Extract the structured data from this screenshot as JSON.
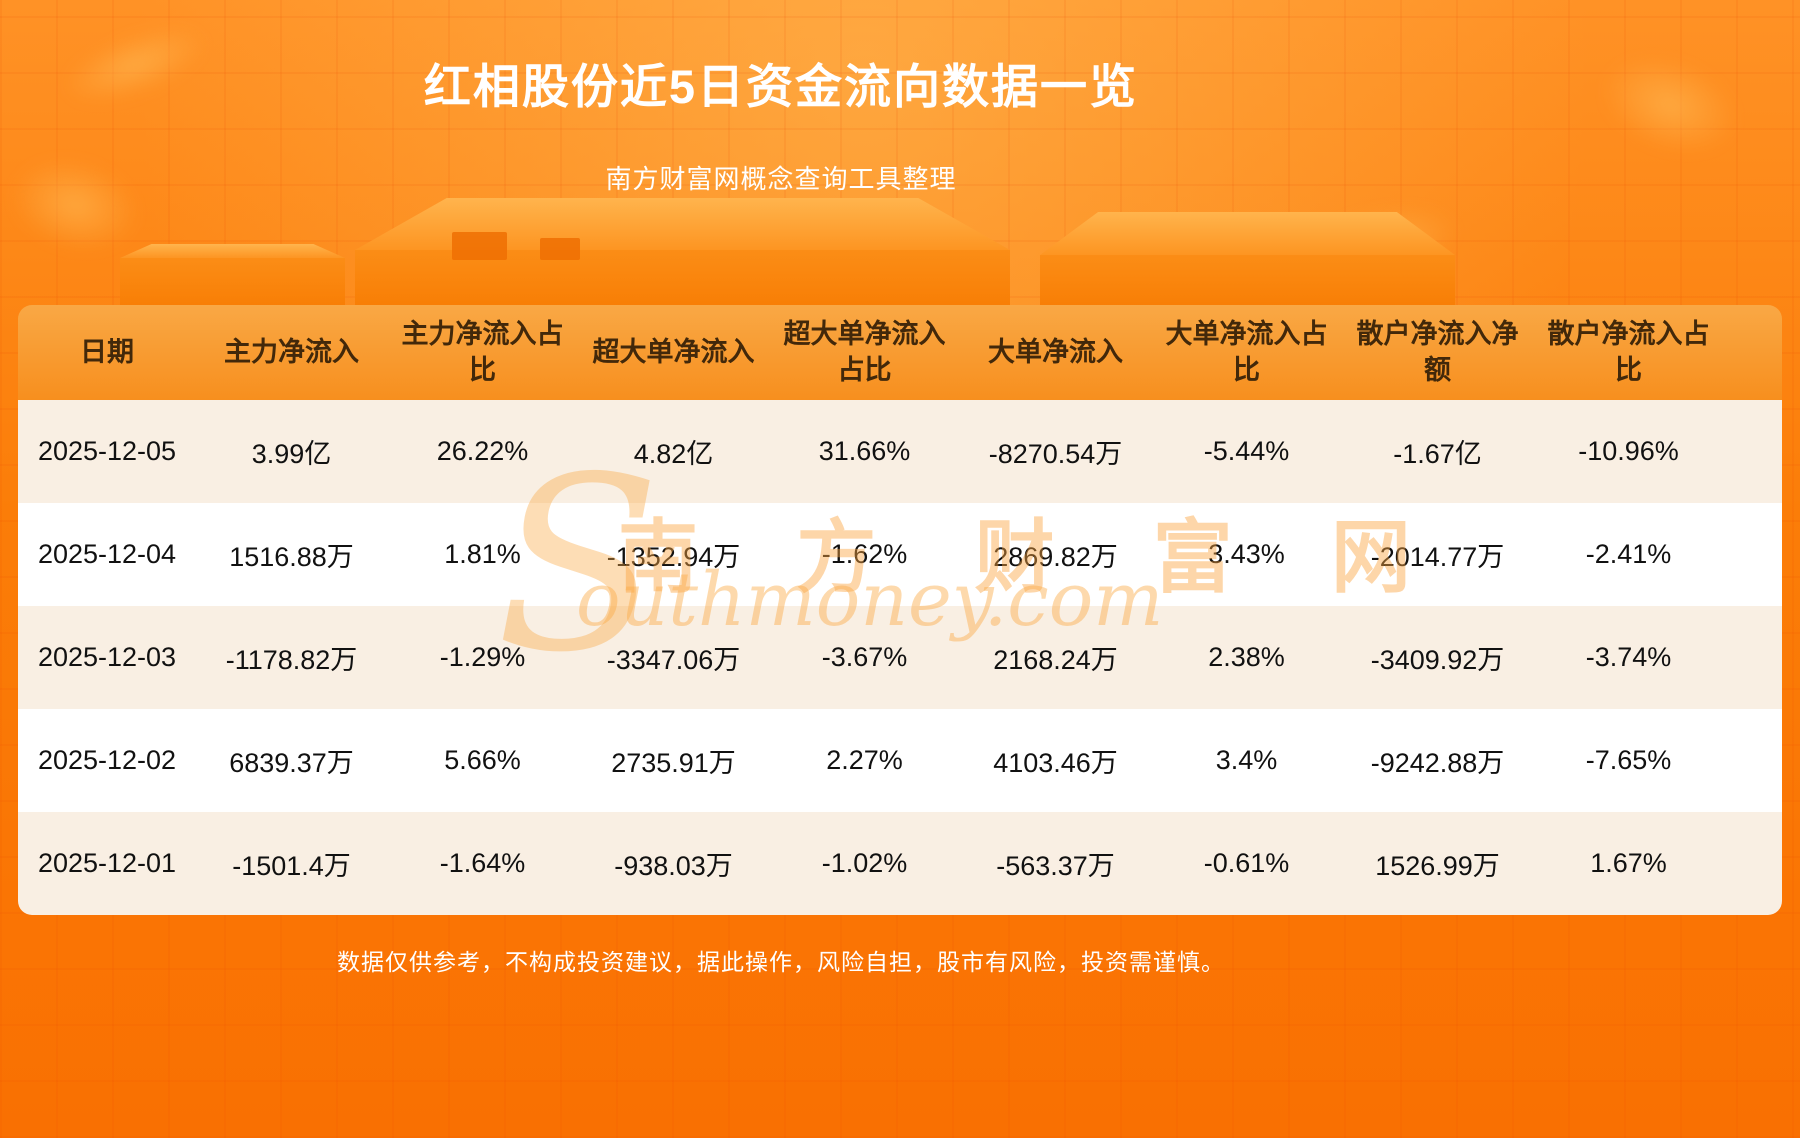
{
  "page": {
    "title": "红相股份近5日资金流向数据一览",
    "subtitle": "南方财富网概念查询工具整理",
    "disclaimer": "数据仅供参考，不构成投资建议，据此操作，风险自担，股市有风险，投资需谨慎。",
    "watermark_s": "S",
    "watermark_cn": "南 方 财 富 网",
    "watermark_en": "outhmoney.com"
  },
  "chart_data": {
    "type": "table",
    "columns": [
      "日期",
      "主力净流入",
      "主力净流入占比",
      "超大单净流入",
      "超大单净流入占比",
      "大单净流入",
      "大单净流入占比",
      "散户净流入净额",
      "散户净流入占比"
    ],
    "rows": [
      [
        "2025-12-05",
        "3.99亿",
        "26.22%",
        "4.82亿",
        "31.66%",
        "-8270.54万",
        "-5.44%",
        "-1.67亿",
        "-10.96%"
      ],
      [
        "2025-12-04",
        "1516.88万",
        "1.81%",
        "-1352.94万",
        "-1.62%",
        "2869.82万",
        "3.43%",
        "-2014.77万",
        "-2.41%"
      ],
      [
        "2025-12-03",
        "-1178.82万",
        "-1.29%",
        "-3347.06万",
        "-3.67%",
        "2168.24万",
        "2.38%",
        "-3409.92万",
        "-3.74%"
      ],
      [
        "2025-12-02",
        "6839.37万",
        "5.66%",
        "2735.91万",
        "2.27%",
        "4103.46万",
        "3.4%",
        "-9242.88万",
        "-7.65%"
      ],
      [
        "2025-12-01",
        "-1501.4万",
        "-1.64%",
        "-938.03万",
        "-1.02%",
        "-563.37万",
        "-0.61%",
        "1526.99万",
        "1.67%"
      ]
    ],
    "title": "红相股份近5日资金流向数据一览"
  },
  "colors": {
    "background_top": "#ff9226",
    "background_bottom": "#f97002",
    "header_gradient_top": "#f9a845",
    "header_gradient_bottom": "#f78f1e",
    "header_text": "#42280a",
    "row_odd": "#f9efe3",
    "row_even": "#ffffff",
    "body_text": "#111111",
    "title_text": "#ffffff"
  }
}
